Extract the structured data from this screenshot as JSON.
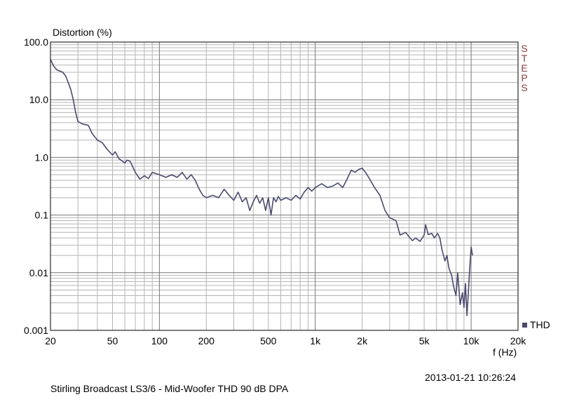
{
  "chart_data": {
    "type": "line",
    "ylabel": "Distortion (%)",
    "xlabel": "f (Hz)",
    "x_scale": "log",
    "y_scale": "log",
    "xlim": [
      20,
      20000
    ],
    "ylim": [
      0.001,
      100
    ],
    "x_ticks": [
      20,
      50,
      100,
      200,
      500,
      1000,
      2000,
      5000,
      10000,
      20000
    ],
    "x_tick_labels": [
      "20",
      "50",
      "100",
      "200",
      "500",
      "1k",
      "2k",
      "5k",
      "10k",
      "20k"
    ],
    "y_ticks": [
      100,
      10,
      1,
      0.1,
      0.01,
      0.001
    ],
    "y_tick_labels": [
      "100.0",
      "10.0",
      "1.0",
      "0.1",
      "0.01",
      "0.001"
    ],
    "grid": true,
    "legend_position": "bottom-right",
    "series": [
      {
        "name": "THD",
        "color": "#4a4a6e",
        "points": [
          [
            20,
            50
          ],
          [
            21,
            38
          ],
          [
            22,
            33
          ],
          [
            24,
            30
          ],
          [
            25,
            26
          ],
          [
            26,
            20
          ],
          [
            27,
            15
          ],
          [
            28,
            10
          ],
          [
            29,
            6
          ],
          [
            30,
            4.2
          ],
          [
            32,
            3.8
          ],
          [
            35,
            3.6
          ],
          [
            37,
            2.6
          ],
          [
            40,
            2.0
          ],
          [
            43,
            1.8
          ],
          [
            46,
            1.4
          ],
          [
            50,
            1.1
          ],
          [
            52,
            1.25
          ],
          [
            55,
            0.95
          ],
          [
            60,
            0.8
          ],
          [
            62,
            0.9
          ],
          [
            65,
            0.85
          ],
          [
            70,
            0.55
          ],
          [
            75,
            0.42
          ],
          [
            80,
            0.48
          ],
          [
            85,
            0.43
          ],
          [
            90,
            0.55
          ],
          [
            100,
            0.5
          ],
          [
            110,
            0.45
          ],
          [
            120,
            0.5
          ],
          [
            130,
            0.45
          ],
          [
            140,
            0.55
          ],
          [
            150,
            0.42
          ],
          [
            160,
            0.5
          ],
          [
            170,
            0.4
          ],
          [
            180,
            0.28
          ],
          [
            190,
            0.22
          ],
          [
            200,
            0.2
          ],
          [
            220,
            0.22
          ],
          [
            240,
            0.2
          ],
          [
            260,
            0.28
          ],
          [
            280,
            0.22
          ],
          [
            300,
            0.18
          ],
          [
            320,
            0.25
          ],
          [
            340,
            0.17
          ],
          [
            360,
            0.2
          ],
          [
            380,
            0.12
          ],
          [
            400,
            0.17
          ],
          [
            420,
            0.22
          ],
          [
            440,
            0.16
          ],
          [
            460,
            0.2
          ],
          [
            480,
            0.12
          ],
          [
            500,
            0.2
          ],
          [
            520,
            0.1
          ],
          [
            540,
            0.2
          ],
          [
            560,
            0.17
          ],
          [
            580,
            0.21
          ],
          [
            600,
            0.18
          ],
          [
            650,
            0.2
          ],
          [
            700,
            0.18
          ],
          [
            750,
            0.22
          ],
          [
            800,
            0.19
          ],
          [
            850,
            0.25
          ],
          [
            900,
            0.3
          ],
          [
            950,
            0.26
          ],
          [
            1000,
            0.3
          ],
          [
            1100,
            0.35
          ],
          [
            1200,
            0.3
          ],
          [
            1300,
            0.32
          ],
          [
            1400,
            0.36
          ],
          [
            1500,
            0.3
          ],
          [
            1600,
            0.42
          ],
          [
            1700,
            0.6
          ],
          [
            1800,
            0.55
          ],
          [
            1900,
            0.62
          ],
          [
            2000,
            0.65
          ],
          [
            2100,
            0.55
          ],
          [
            2200,
            0.45
          ],
          [
            2400,
            0.3
          ],
          [
            2600,
            0.22
          ],
          [
            2800,
            0.12
          ],
          [
            3000,
            0.09
          ],
          [
            3300,
            0.08
          ],
          [
            3500,
            0.045
          ],
          [
            3800,
            0.05
          ],
          [
            4000,
            0.042
          ],
          [
            4200,
            0.036
          ],
          [
            4400,
            0.04
          ],
          [
            4700,
            0.035
          ],
          [
            5000,
            0.045
          ],
          [
            5100,
            0.068
          ],
          [
            5300,
            0.046
          ],
          [
            5600,
            0.048
          ],
          [
            5800,
            0.04
          ],
          [
            6100,
            0.048
          ],
          [
            6300,
            0.04
          ],
          [
            6500,
            0.025
          ],
          [
            6800,
            0.016
          ],
          [
            7000,
            0.02
          ],
          [
            7200,
            0.012
          ],
          [
            7500,
            0.009
          ],
          [
            7700,
            0.006
          ],
          [
            8000,
            0.004
          ],
          [
            8200,
            0.01
          ],
          [
            8500,
            0.0028
          ],
          [
            8800,
            0.0045
          ],
          [
            9000,
            0.0025
          ],
          [
            9200,
            0.0065
          ],
          [
            9400,
            0.0018
          ],
          [
            9600,
            0.0045
          ],
          [
            9800,
            0.012
          ],
          [
            10000,
            0.028
          ],
          [
            10200,
            0.02
          ]
        ]
      }
    ]
  },
  "labels": {
    "ylabel": "Distortion (%)",
    "xlabel": "f (Hz)",
    "legend_item": "THD",
    "steps": [
      "S",
      "T",
      "E",
      "P",
      "S"
    ],
    "timestamp": "2013-01-21 10:26:24",
    "caption": "Stirling Broadcast LS3/6 - Mid-Woofer THD 90 dB     DPA"
  }
}
